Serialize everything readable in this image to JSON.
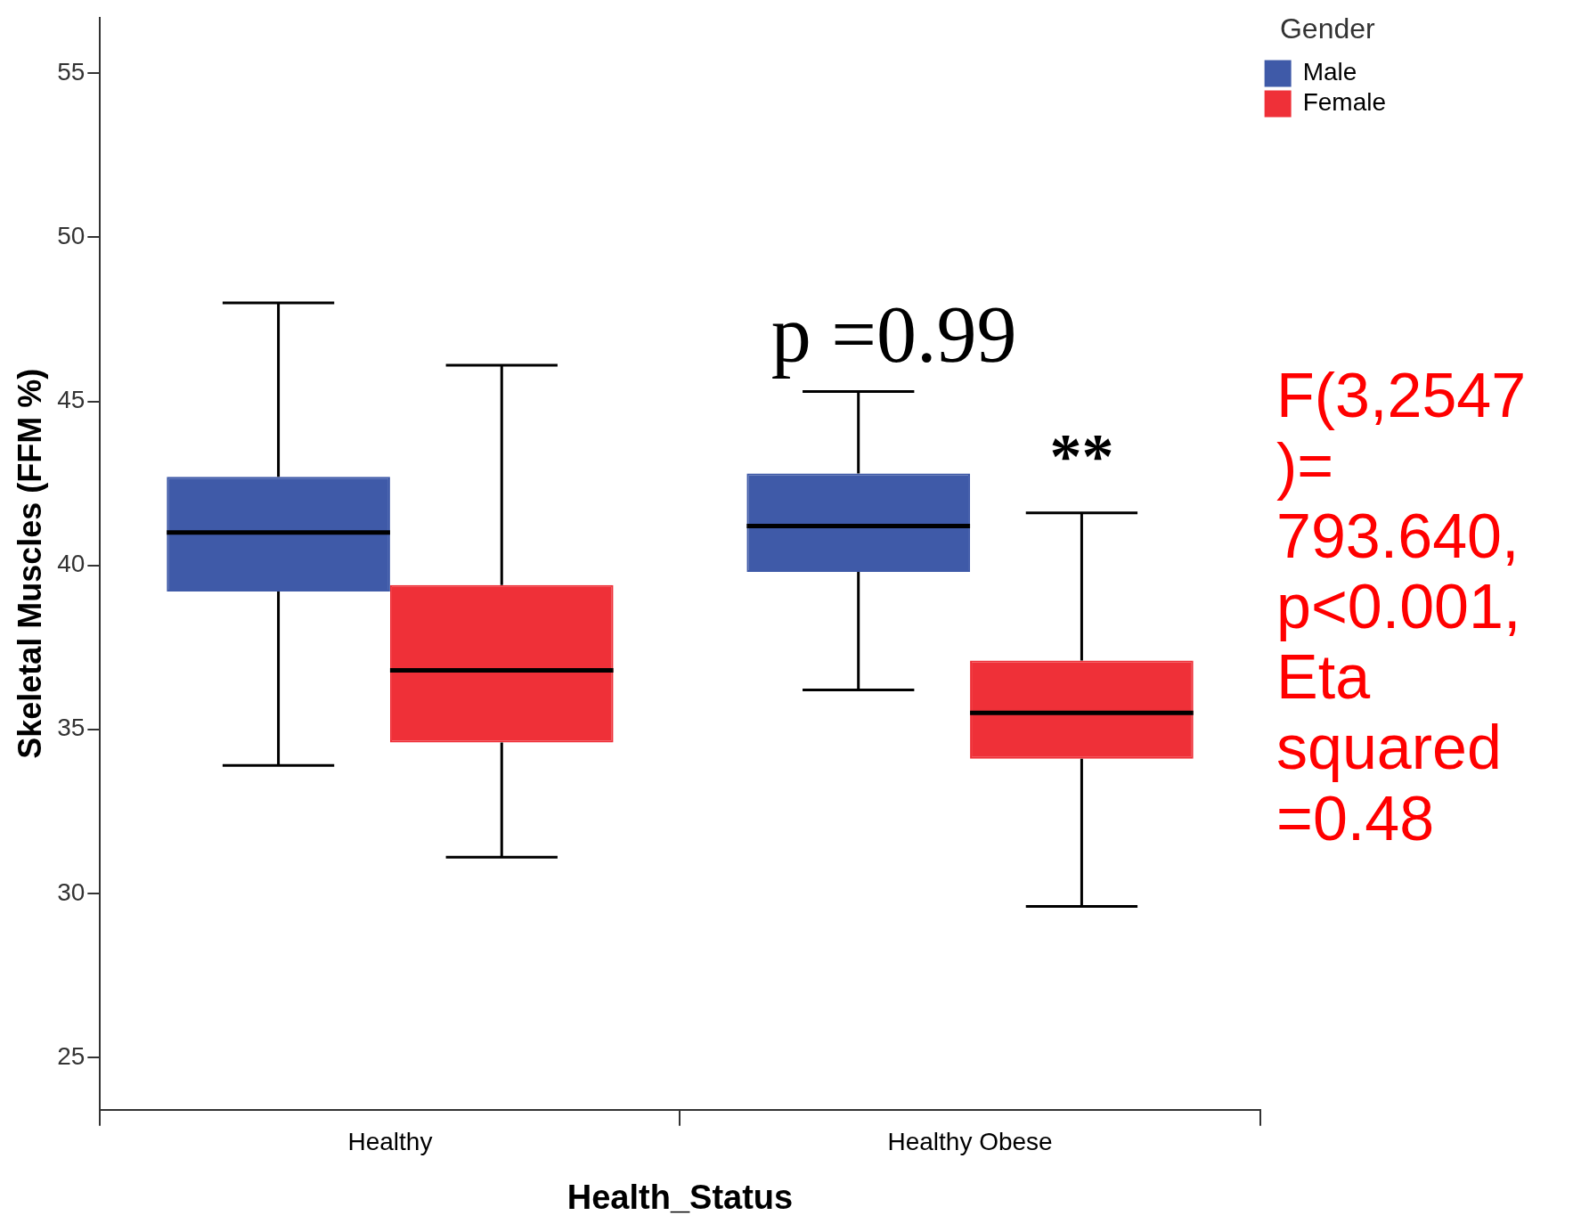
{
  "chart_data": {
    "type": "box",
    "xlabel": "Health_Status",
    "ylabel": "Skeletal Muscles (FFM %)",
    "legend_title": "Gender",
    "categories": [
      "Healthy",
      "Healthy Obese"
    ],
    "series": [
      {
        "name": "Male",
        "color": "#3f5aa8",
        "boxes": [
          {
            "low": 33.9,
            "q1": 39.2,
            "median": 41.0,
            "q3": 42.7,
            "high": 48.0
          },
          {
            "low": 36.2,
            "q1": 39.8,
            "median": 41.2,
            "q3": 42.8,
            "high": 45.3
          }
        ]
      },
      {
        "name": "Female",
        "color": "#ef3038",
        "boxes": [
          {
            "low": 31.1,
            "q1": 34.6,
            "median": 36.8,
            "q3": 39.4,
            "high": 46.1
          },
          {
            "low": 29.6,
            "q1": 34.1,
            "median": 35.5,
            "q3": 37.1,
            "high": 41.6
          }
        ]
      }
    ],
    "ylim": [
      23.4,
      56.7
    ],
    "yticks": [
      25,
      30,
      35,
      40,
      45,
      50,
      55
    ],
    "grid": false,
    "legend": "top right",
    "annotations": [
      "p =0.99",
      "**",
      "F(3,2547)= 793.640, p<0.001, Eta squared =0.48"
    ]
  }
}
